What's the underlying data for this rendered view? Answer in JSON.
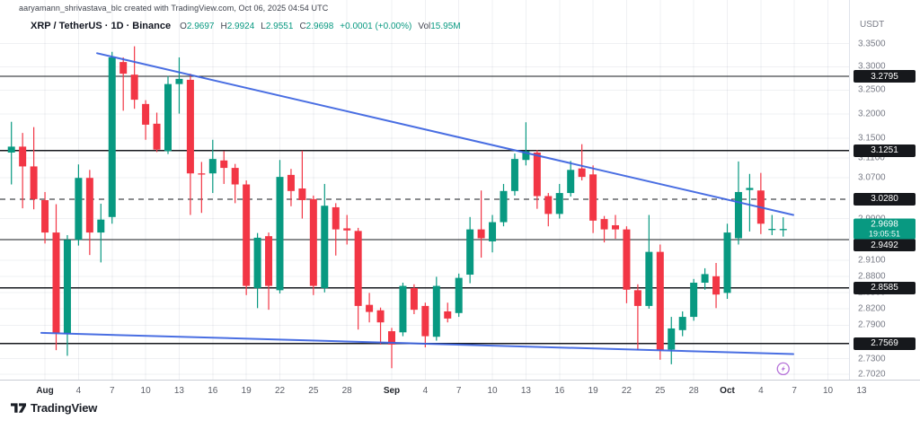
{
  "attribution": "aaryamann_shrivastava_blc created with TradingView.com, Oct 06, 2025 04:54 UTC",
  "legend": {
    "title": "XRP / TetherUS · 1D · Binance",
    "o_label": "O",
    "o": "2.9697",
    "h_label": "H",
    "h": "2.9924",
    "l_label": "L",
    "l": "2.9551",
    "c_label": "C",
    "c": "2.9698",
    "change": "+0.0001 (+0.00%)",
    "vol_label": "Vol",
    "vol": "15.95M"
  },
  "price_axis": {
    "currency": "USDT",
    "ticks": [
      {
        "label": "3.3500",
        "price": 3.35
      },
      {
        "label": "3.3000",
        "price": 3.3
      },
      {
        "label": "3.2500",
        "price": 3.25
      },
      {
        "label": "3.2000",
        "price": 3.2
      },
      {
        "label": "3.1500",
        "price": 3.15
      },
      {
        "label": "3.1100",
        "price": 3.11
      },
      {
        "label": "3.0700",
        "price": 3.07
      },
      {
        "label": "2.9900",
        "price": 2.99
      },
      {
        "label": "2.9100",
        "price": 2.91
      },
      {
        "label": "2.8800",
        "price": 2.88
      },
      {
        "label": "2.8500",
        "price": 2.85
      },
      {
        "label": "2.8200",
        "price": 2.82
      },
      {
        "label": "2.7900",
        "price": 2.79
      },
      {
        "label": "2.7300",
        "price": 2.73
      },
      {
        "label": "2.7020",
        "price": 2.702
      }
    ],
    "last_price_badge": {
      "price_label": "2.9698",
      "price": 2.9698,
      "countdown": "19:05:51"
    }
  },
  "time_axis": {
    "ticks": [
      {
        "label": "Aug",
        "day": 3,
        "month": true
      },
      {
        "label": "4",
        "day": 6
      },
      {
        "label": "7",
        "day": 9
      },
      {
        "label": "10",
        "day": 12
      },
      {
        "label": "13",
        "day": 15
      },
      {
        "label": "16",
        "day": 18
      },
      {
        "label": "19",
        "day": 21
      },
      {
        "label": "22",
        "day": 24
      },
      {
        "label": "25",
        "day": 27
      },
      {
        "label": "28",
        "day": 30
      },
      {
        "label": "Sep",
        "day": 34,
        "month": true
      },
      {
        "label": "4",
        "day": 37
      },
      {
        "label": "7",
        "day": 40
      },
      {
        "label": "10",
        "day": 43
      },
      {
        "label": "13",
        "day": 46
      },
      {
        "label": "16",
        "day": 49
      },
      {
        "label": "19",
        "day": 52
      },
      {
        "label": "22",
        "day": 55
      },
      {
        "label": "25",
        "day": 58
      },
      {
        "label": "28",
        "day": 61
      },
      {
        "label": "Oct",
        "day": 64,
        "month": true
      },
      {
        "label": "4",
        "day": 67
      },
      {
        "label": "7",
        "day": 70
      },
      {
        "label": "10",
        "day": 73
      },
      {
        "label": "13",
        "day": 76
      }
    ]
  },
  "marker": {
    "name": "idea-marker",
    "day": 69,
    "price": 2.712
  },
  "logo": {
    "text": "TradingView"
  },
  "colors": {
    "up": "#089981",
    "down": "#f23645",
    "trendline": "#3a62e0",
    "level": "#16181d",
    "grid": "rgba(100,110,140,0.10)",
    "axis_text": "#787b86",
    "badge_bg": "#16181c",
    "last_badge_bg": "#089981",
    "marker": "#b673d9"
  },
  "chart_data": {
    "type": "candlestick",
    "title": "XRP / TetherUS · 1D · Binance",
    "ylabel": "USDT",
    "scale": "logarithmic",
    "ylim": [
      2.7,
      3.36
    ],
    "grid": true,
    "last": {
      "price": 2.9698,
      "change": "+0.0001",
      "change_pct": "+0.00%",
      "volume": "15.95M",
      "countdown": "19:05:51"
    },
    "horizontal_levels": [
      {
        "price": 3.2795,
        "label": "3.2795",
        "style": "solid"
      },
      {
        "price": 3.1251,
        "label": "3.1251",
        "style": "solid"
      },
      {
        "price": 3.028,
        "label": "3.0280",
        "style": "dashed"
      },
      {
        "price": 2.9492,
        "label": "2.9492",
        "style": "solid"
      },
      {
        "price": 2.8585,
        "label": "2.8585",
        "style": "solid"
      },
      {
        "price": 2.7569,
        "label": "2.7569",
        "style": "solid"
      }
    ],
    "trendlines": [
      {
        "from_day": 7.66,
        "from_price": 3.329,
        "to_day": 69.9,
        "to_price": 2.997
      },
      {
        "from_day": 2.67,
        "from_price": 2.776,
        "to_day": 69.9,
        "to_price": 2.738
      }
    ],
    "candles": [
      [
        "Jul 29",
        3.121,
        3.184,
        3.057,
        3.133
      ],
      [
        "Jul 30",
        3.133,
        3.161,
        3.01,
        3.093
      ],
      [
        "Jul 31",
        3.093,
        3.173,
        3.008,
        3.028
      ],
      [
        "Aug 1",
        3.026,
        3.042,
        2.942,
        2.963
      ],
      [
        "Aug 2",
        2.963,
        3.018,
        2.745,
        2.776
      ],
      [
        "Aug 3",
        2.774,
        2.958,
        2.735,
        2.949
      ],
      [
        "Aug 4",
        2.949,
        3.097,
        2.938,
        3.07
      ],
      [
        "Aug 5",
        3.07,
        3.086,
        2.92,
        2.963
      ],
      [
        "Aug 6",
        2.963,
        3.019,
        2.906,
        2.988
      ],
      [
        "Aug 7",
        2.993,
        3.332,
        2.98,
        3.32
      ],
      [
        "Aug 8",
        3.31,
        3.32,
        3.207,
        3.285
      ],
      [
        "Aug 9",
        3.283,
        3.344,
        3.211,
        3.23
      ],
      [
        "Aug 10",
        3.221,
        3.229,
        3.147,
        3.178
      ],
      [
        "Aug 11",
        3.18,
        3.203,
        3.122,
        3.127
      ],
      [
        "Aug 12",
        3.124,
        3.28,
        3.118,
        3.263
      ],
      [
        "Aug 13",
        3.263,
        3.32,
        3.201,
        3.274
      ],
      [
        "Aug 14",
        3.272,
        3.285,
        2.997,
        3.079
      ],
      [
        "Aug 15",
        3.079,
        3.102,
        3.001,
        3.078
      ],
      [
        "Aug 16",
        3.079,
        3.147,
        3.04,
        3.108
      ],
      [
        "Aug 17",
        3.105,
        3.124,
        3.058,
        3.09
      ],
      [
        "Aug 18",
        3.09,
        3.098,
        3.02,
        3.057
      ],
      [
        "Aug 19",
        3.057,
        3.065,
        2.845,
        2.862
      ],
      [
        "Aug 20",
        2.858,
        2.962,
        2.821,
        2.953
      ],
      [
        "Aug 21",
        2.956,
        2.963,
        2.818,
        2.862
      ],
      [
        "Aug 22",
        2.854,
        3.106,
        2.848,
        3.072
      ],
      [
        "Aug 23",
        3.076,
        3.088,
        3.014,
        3.044
      ],
      [
        "Aug 24",
        3.049,
        3.125,
        2.99,
        3.026
      ],
      [
        "Aug 25",
        3.028,
        3.035,
        2.845,
        2.862
      ],
      [
        "Aug 26",
        2.858,
        3.058,
        2.85,
        3.015
      ],
      [
        "Aug 27",
        3.012,
        3.02,
        2.919,
        2.969
      ],
      [
        "Aug 28",
        2.971,
        2.997,
        2.94,
        2.967
      ],
      [
        "Aug 29",
        2.966,
        2.972,
        2.782,
        2.825
      ],
      [
        "Aug 30",
        2.827,
        2.849,
        2.795,
        2.814
      ],
      [
        "Aug 31",
        2.817,
        2.822,
        2.755,
        2.795
      ],
      [
        "Sep 1",
        2.779,
        2.785,
        2.713,
        2.755
      ],
      [
        "Sep 2",
        2.777,
        2.868,
        2.77,
        2.862
      ],
      [
        "Sep 3",
        2.858,
        2.865,
        2.81,
        2.818
      ],
      [
        "Sep 4",
        2.825,
        2.831,
        2.75,
        2.77
      ],
      [
        "Sep 5",
        2.769,
        2.879,
        2.762,
        2.862
      ],
      [
        "Sep 6",
        2.815,
        2.831,
        2.795,
        2.802
      ],
      [
        "Sep 7",
        2.812,
        2.885,
        2.805,
        2.877
      ],
      [
        "Sep 8",
        2.883,
        2.993,
        2.867,
        2.969
      ],
      [
        "Sep 9",
        2.969,
        3.045,
        2.915,
        2.952
      ],
      [
        "Sep 10",
        2.946,
        2.997,
        2.925,
        2.983
      ],
      [
        "Sep 11",
        2.983,
        3.058,
        2.975,
        3.044
      ],
      [
        "Sep 12",
        3.044,
        3.119,
        3.035,
        3.108
      ],
      [
        "Sep 13",
        3.106,
        3.183,
        3.095,
        3.124
      ],
      [
        "Sep 14",
        3.121,
        3.126,
        3.009,
        3.034
      ],
      [
        "Sep 15",
        3.034,
        3.04,
        2.975,
        2.999
      ],
      [
        "Sep 16",
        2.999,
        3.058,
        2.99,
        3.04
      ],
      [
        "Sep 17",
        3.04,
        3.104,
        3.033,
        3.086
      ],
      [
        "Sep 18",
        3.089,
        3.138,
        3.065,
        3.072
      ],
      [
        "Sep 19",
        3.077,
        3.095,
        2.962,
        2.986
      ],
      [
        "Sep 20",
        2.989,
        2.995,
        2.944,
        2.969
      ],
      [
        "Sep 21",
        2.977,
        2.997,
        2.951,
        2.969
      ],
      [
        "Sep 22",
        2.969,
        2.975,
        2.83,
        2.855
      ],
      [
        "Sep 23",
        2.854,
        2.865,
        2.745,
        2.825
      ],
      [
        "Sep 24",
        2.825,
        2.997,
        2.82,
        2.926
      ],
      [
        "Sep 25",
        2.926,
        2.94,
        2.728,
        2.746
      ],
      [
        "Sep 26",
        2.746,
        2.805,
        2.72,
        2.784
      ],
      [
        "Sep 27",
        2.781,
        2.815,
        2.77,
        2.805
      ],
      [
        "Sep 28",
        2.805,
        2.875,
        2.798,
        2.868
      ],
      [
        "Sep 29",
        2.868,
        2.895,
        2.855,
        2.884
      ],
      [
        "Sep 30",
        2.88,
        2.905,
        2.821,
        2.846
      ],
      [
        "Oct 1",
        2.849,
        2.98,
        2.838,
        2.963
      ],
      [
        "Oct 2",
        2.952,
        3.103,
        2.94,
        3.042
      ],
      [
        "Oct 3",
        3.046,
        3.078,
        2.965,
        3.05
      ],
      [
        "Oct 4",
        3.045,
        3.08,
        2.96,
        2.98
      ],
      [
        "Oct 5",
        2.9695,
        2.997,
        2.958,
        2.97
      ],
      [
        "Oct 6",
        2.9697,
        2.9924,
        2.9551,
        2.9698
      ]
    ]
  }
}
